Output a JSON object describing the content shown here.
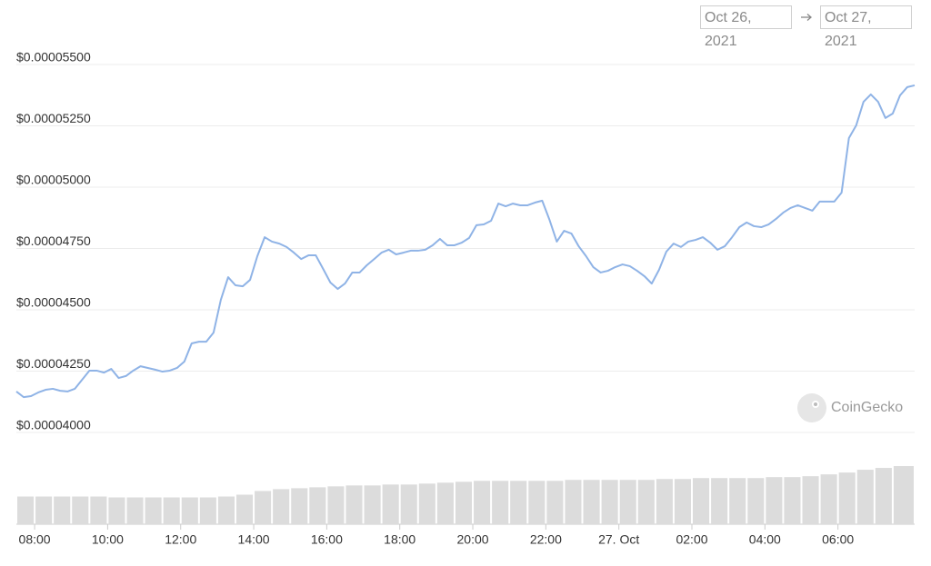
{
  "chart_data": {
    "type": "line",
    "date_range": {
      "from": "Oct 26, 2021",
      "to": "Oct 27, 2021"
    },
    "watermark": "CoinGecko",
    "color": "#8fb3e6",
    "grid": true,
    "xlim": [
      7.5,
      32.1
    ],
    "ylim": [
      4e-05,
      5.5e-05
    ],
    "xticks": [
      {
        "value": 8,
        "label": "08:00"
      },
      {
        "value": 10,
        "label": "10:00"
      },
      {
        "value": 12,
        "label": "12:00"
      },
      {
        "value": 14,
        "label": "14:00"
      },
      {
        "value": 16,
        "label": "16:00"
      },
      {
        "value": 18,
        "label": "18:00"
      },
      {
        "value": 20,
        "label": "20:00"
      },
      {
        "value": 22,
        "label": "22:00"
      },
      {
        "value": 24,
        "label": "27. Oct"
      },
      {
        "value": 26,
        "label": "02:00"
      },
      {
        "value": 28,
        "label": "04:00"
      },
      {
        "value": 30,
        "label": "06:00"
      }
    ],
    "yticks": [
      {
        "value": 4e-05,
        "label": "$0.00004000"
      },
      {
        "value": 4.25e-05,
        "label": "$0.00004250"
      },
      {
        "value": 4.5e-05,
        "label": "$0.00004500"
      },
      {
        "value": 4.75e-05,
        "label": "$0.00004750"
      },
      {
        "value": 5e-05,
        "label": "$0.00005000"
      },
      {
        "value": 5.25e-05,
        "label": "$0.00005250"
      },
      {
        "value": 5.5e-05,
        "label": "$0.00005500"
      }
    ],
    "x": [
      7.5,
      7.7,
      7.9,
      8.1,
      8.3,
      8.5,
      8.7,
      8.9,
      9.1,
      9.3,
      9.5,
      9.7,
      9.9,
      10.1,
      10.3,
      10.5,
      10.7,
      10.9,
      11.1,
      11.3,
      11.5,
      11.7,
      11.9,
      12.1,
      12.3,
      12.5,
      12.7,
      12.9,
      13.1,
      13.3,
      13.5,
      13.7,
      13.9,
      14.1,
      14.3,
      14.5,
      14.7,
      14.9,
      15.1,
      15.3,
      15.5,
      15.7,
      15.9,
      16.1,
      16.3,
      16.5,
      16.7,
      16.9,
      17.1,
      17.3,
      17.5,
      17.7,
      17.9,
      18.1,
      18.3,
      18.5,
      18.7,
      18.9,
      19.1,
      19.3,
      19.5,
      19.7,
      19.9,
      20.1,
      20.3,
      20.5,
      20.7,
      20.9,
      21.1,
      21.3,
      21.5,
      21.7,
      21.9,
      22.1,
      22.3,
      22.5,
      22.7,
      22.9,
      23.1,
      23.3,
      23.5,
      23.7,
      23.9,
      24.1,
      24.3,
      24.5,
      24.7,
      24.9,
      25.1,
      25.3,
      25.5,
      25.7,
      25.9,
      26.1,
      26.3,
      26.5,
      26.7,
      26.9,
      27.1,
      27.3,
      27.5,
      27.7,
      27.9,
      28.1,
      28.3,
      28.5,
      28.7,
      28.9,
      29.1,
      29.3,
      29.5,
      29.7,
      29.9,
      30.1,
      30.3,
      30.5,
      30.7,
      30.9,
      31.1,
      31.3,
      31.5,
      31.7,
      31.9,
      32.1
    ],
    "values": [
      4.167e-05,
      4.144e-05,
      4.148e-05,
      4.163e-05,
      4.174e-05,
      4.178e-05,
      4.17e-05,
      4.167e-05,
      4.178e-05,
      4.215e-05,
      4.252e-05,
      4.252e-05,
      4.244e-05,
      4.259e-05,
      4.222e-05,
      4.23e-05,
      4.252e-05,
      4.27e-05,
      4.263e-05,
      4.256e-05,
      4.248e-05,
      4.252e-05,
      4.263e-05,
      4.289e-05,
      4.363e-05,
      4.37e-05,
      4.37e-05,
      4.407e-05,
      4.541e-05,
      4.633e-05,
      4.6e-05,
      4.596e-05,
      4.622e-05,
      4.719e-05,
      4.796e-05,
      4.778e-05,
      4.77e-05,
      4.756e-05,
      4.733e-05,
      4.707e-05,
      4.722e-05,
      4.722e-05,
      4.667e-05,
      4.611e-05,
      4.585e-05,
      4.607e-05,
      4.652e-05,
      4.652e-05,
      4.682e-05,
      4.707e-05,
      4.733e-05,
      4.745e-05,
      4.726e-05,
      4.733e-05,
      4.741e-05,
      4.741e-05,
      4.745e-05,
      4.763e-05,
      4.789e-05,
      4.763e-05,
      4.763e-05,
      4.774e-05,
      4.793e-05,
      4.845e-05,
      4.848e-05,
      4.863e-05,
      4.933e-05,
      4.922e-05,
      4.933e-05,
      4.926e-05,
      4.926e-05,
      4.937e-05,
      4.945e-05,
      4.867e-05,
      4.778e-05,
      4.822e-05,
      4.811e-05,
      4.759e-05,
      4.719e-05,
      4.674e-05,
      4.652e-05,
      4.659e-05,
      4.674e-05,
      4.685e-05,
      4.678e-05,
      4.659e-05,
      4.637e-05,
      4.607e-05,
      4.663e-05,
      4.737e-05,
      4.77e-05,
      4.756e-05,
      4.778e-05,
      4.785e-05,
      4.796e-05,
      4.774e-05,
      4.745e-05,
      4.759e-05,
      4.796e-05,
      4.837e-05,
      4.856e-05,
      4.841e-05,
      4.837e-05,
      4.848e-05,
      4.87e-05,
      4.896e-05,
      4.915e-05,
      4.926e-05,
      4.915e-05,
      4.904e-05,
      4.941e-05,
      4.941e-05,
      4.941e-05,
      4.978e-05,
      5.2e-05,
      5.252e-05,
      5.348e-05,
      5.378e-05,
      5.348e-05,
      5.282e-05,
      5.3e-05,
      5.374e-05,
      5.408e-05,
      5.415e-05
    ],
    "volume": {
      "color": "#dcdcdc",
      "x": [
        7.5,
        8,
        8.5,
        9,
        9.5,
        10,
        10.5,
        11,
        11.5,
        12,
        12.5,
        13,
        13.5,
        14,
        14.5,
        15,
        15.5,
        16,
        16.5,
        17,
        17.5,
        18,
        18.5,
        19,
        19.5,
        20,
        20.5,
        21,
        21.5,
        22,
        22.5,
        23,
        23.5,
        24,
        24.5,
        25,
        25.5,
        26,
        26.5,
        27,
        27.5,
        28,
        28.5,
        29,
        29.5,
        30,
        30.5,
        31,
        31.5
      ],
      "values": [
        30,
        30,
        30,
        30,
        30,
        29,
        29,
        29,
        29,
        29,
        29,
        30,
        32,
        36,
        38,
        39,
        40,
        41,
        42,
        42,
        43,
        43,
        44,
        45,
        46,
        47,
        47,
        47,
        47,
        47,
        48,
        48,
        48,
        48,
        48,
        49,
        49,
        50,
        50,
        50,
        50,
        51,
        51,
        52,
        54,
        56,
        59,
        61,
        63
      ]
    }
  }
}
